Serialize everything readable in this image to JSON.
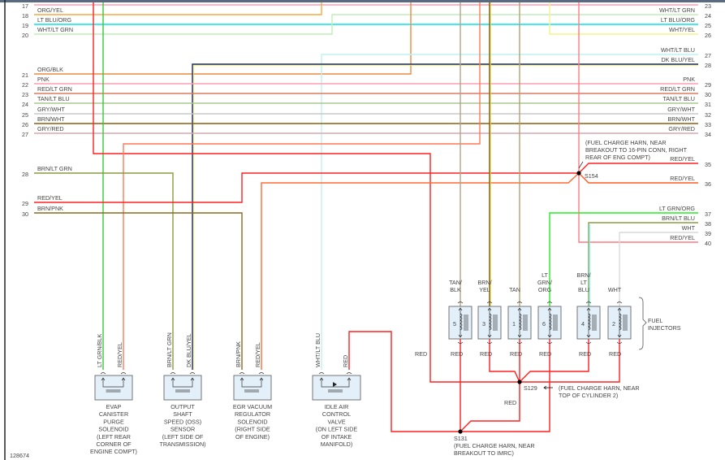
{
  "figure_id": "128674",
  "left_rows": [
    {
      "num": "17",
      "label": ""
    },
    {
      "num": "18",
      "label": "ORG/YEL"
    },
    {
      "num": "19",
      "label": "LT BLU/ORG"
    },
    {
      "num": "20",
      "label": "WHT/LT GRN"
    },
    {
      "num": "21",
      "label": "ORG/BLK"
    },
    {
      "num": "22",
      "label": "PNK"
    },
    {
      "num": "23",
      "label": "RED/LT GRN"
    },
    {
      "num": "24",
      "label": "TAN/LT BLU"
    },
    {
      "num": "25",
      "label": "GRY/WHT"
    },
    {
      "num": "26",
      "label": "BRN/WHT"
    },
    {
      "num": "27",
      "label": "GRY/RED"
    },
    {
      "num": "28",
      "label": "BRN/LT GRN"
    },
    {
      "num": "29",
      "label": "RED/YEL"
    },
    {
      "num": "30",
      "label": "BRN/PNK"
    }
  ],
  "right_rows": [
    {
      "num": "23",
      "label": ""
    },
    {
      "num": "24",
      "label": "WHT/LT GRN"
    },
    {
      "num": "25",
      "label": "LT BLU/ORG"
    },
    {
      "num": "26",
      "label": "WHT/YEL"
    },
    {
      "num": "27",
      "label": "WHT/LT BLU"
    },
    {
      "num": "28",
      "label": "DK BLU/YEL"
    },
    {
      "num": "29",
      "label": "PNK"
    },
    {
      "num": "30",
      "label": "RED/LT GRN"
    },
    {
      "num": "31",
      "label": "TAN/LT BLU"
    },
    {
      "num": "32",
      "label": "GRY/WHT"
    },
    {
      "num": "33",
      "label": "BRN/WHT"
    },
    {
      "num": "34",
      "label": "GRY/RED"
    },
    {
      "num": "35",
      "label": "RED/YEL"
    },
    {
      "num": "36",
      "label": "RED/YEL"
    },
    {
      "num": "37",
      "label": "LT GRN/ORG"
    },
    {
      "num": "38",
      "label": "BRN/LT BLU"
    },
    {
      "num": "39",
      "label": "WHT"
    },
    {
      "num": "40",
      "label": "RED/YEL"
    }
  ],
  "splices": {
    "s154": {
      "id": "S154",
      "note": [
        "(FUEL CHARGE HARN, NEAR",
        "BREAKOUT TO 16-PIN CONN, RIGHT",
        "REAR OF ENG COMPT)"
      ]
    },
    "s129": {
      "id": "S129",
      "note": [
        "(FUEL CHARGE HARN, NEAR",
        "TOP OF CYLINDER 2)"
      ]
    },
    "s131": {
      "id": "S131",
      "note": [
        "(FUEL CHARGE HARN, NEAR",
        "BREAKOUT TO IMRC)"
      ]
    }
  },
  "components": [
    {
      "wires": [
        "LT GRN/BLK",
        "RED/YEL"
      ],
      "name": [
        "EVAP",
        "CANISTER",
        "PURGE",
        "SOLENOID",
        "(LEFT REAR",
        "CORNER OF",
        "ENGINE COMPT)"
      ]
    },
    {
      "wires": [
        "BRN/LT GRN",
        "DK BLU/YEL"
      ],
      "name": [
        "OUTPUT",
        "SHAFT",
        "SPEED (OSS)",
        "SENSOR",
        "(LEFT SIDE OF",
        "TRANSMISSION)"
      ]
    },
    {
      "wires": [
        "BRN/PNK",
        "RED/YEL"
      ],
      "name": [
        "EGR VACUUM",
        "REGULATOR",
        "SOLENOID",
        "(RIGHT SIDE",
        "OF ENGINE)"
      ]
    },
    {
      "wires": [
        "WHT/LT BLU",
        "RED"
      ],
      "name": [
        "IDLE AIR",
        "CONTROL",
        "VALVE",
        "(ON LEFT SIDE",
        "OF INTAKE",
        "MANIFOLD)"
      ]
    }
  ],
  "injectors": {
    "group_label": [
      "FUEL",
      "INJECTORS"
    ],
    "items": [
      {
        "num": "5",
        "wire": [
          "TAN/",
          "BLK"
        ],
        "ground": "RED"
      },
      {
        "num": "3",
        "wire": [
          "BRN/",
          "YEL"
        ],
        "ground": "RED"
      },
      {
        "num": "1",
        "wire": [
          "TAN"
        ],
        "ground": "RED"
      },
      {
        "num": "6",
        "wire": [
          "LT",
          "GRN/",
          "ORG"
        ],
        "ground": "RED"
      },
      {
        "num": "4",
        "wire": [
          "BRN/",
          "LT",
          "BLU"
        ],
        "ground": "RED"
      },
      {
        "num": "2",
        "wire": [
          "WHT"
        ],
        "ground": "RED"
      }
    ]
  },
  "red_labels": {
    "feed": "RED",
    "s129_to_s131": "RED"
  },
  "colors": {
    "red": "#ff2020",
    "pink": "#ff9eb0",
    "cyan": "#00e5ee",
    "orange": "#f0a040",
    "lt_green": "#b8ecb0",
    "yellow": "#f4f07a",
    "dk_blue": "#1a2a6a",
    "brown": "#8a6010",
    "tan": "#b8a888",
    "green": "#22dd22",
    "salmon": "#ff7755"
  }
}
